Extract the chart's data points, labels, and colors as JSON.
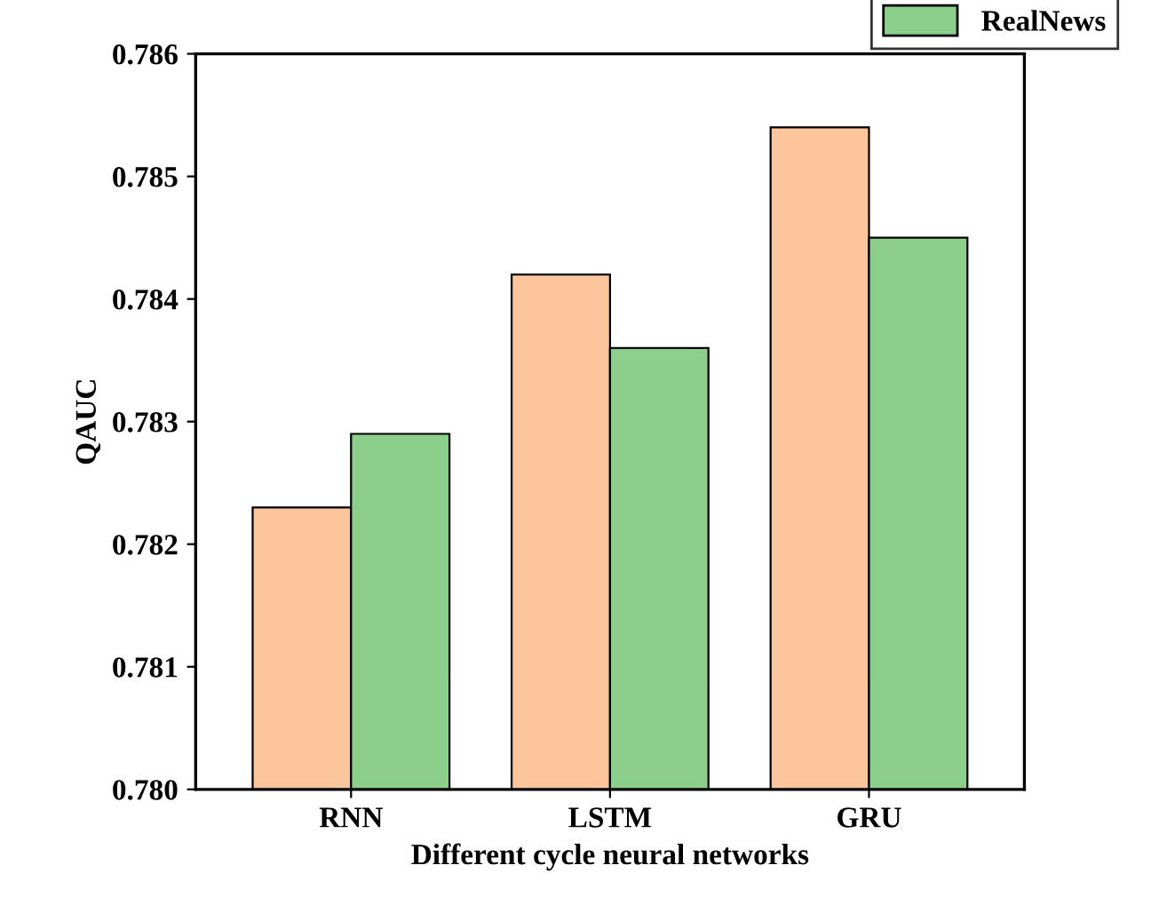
{
  "chart_data": {
    "type": "bar",
    "xlabel": "Different cycle neural networks",
    "ylabel": "QAUC",
    "categories": [
      "RNN",
      "LSTM",
      "GRU"
    ],
    "series": [
      {
        "color": "#fdc59b",
        "values": [
          0.7823,
          0.7842,
          0.7854
        ]
      },
      {
        "name": "RealNews",
        "color": "#8ccf8a",
        "values": [
          0.7829,
          0.7836,
          0.7845
        ]
      }
    ],
    "ylim": [
      0.78,
      0.786
    ],
    "yticks": [
      {
        "value": 0.78,
        "label": "0.780"
      },
      {
        "value": 0.781,
        "label": "0.781"
      },
      {
        "value": 0.782,
        "label": "0.782"
      },
      {
        "value": 0.783,
        "label": "0.783"
      },
      {
        "value": 0.784,
        "label": "0.784"
      },
      {
        "value": 0.785,
        "label": "0.785"
      },
      {
        "value": 0.786,
        "label": "0.786"
      }
    ],
    "grid": false,
    "legend": "top right"
  }
}
